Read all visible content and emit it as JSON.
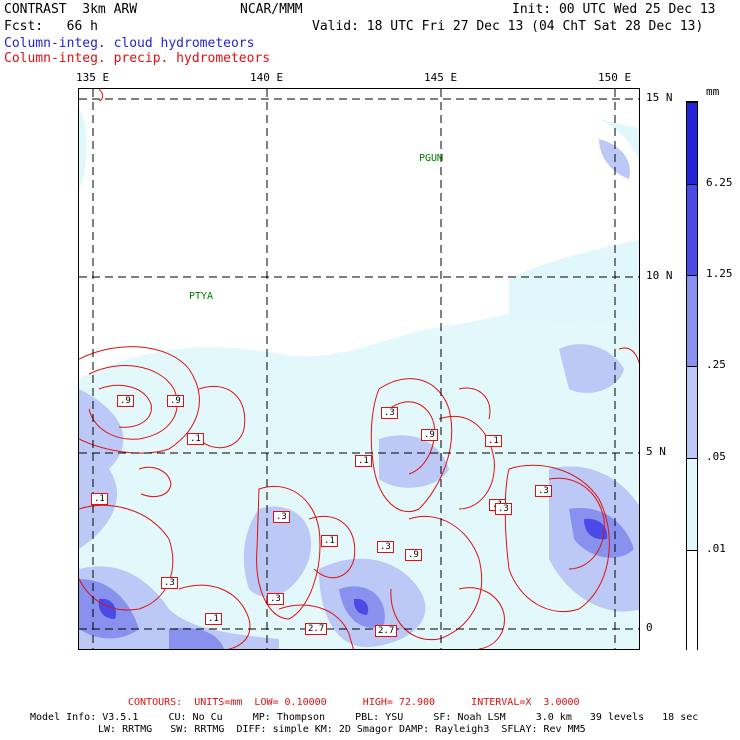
{
  "header": {
    "model": "CONTRAST  3km ARW",
    "org": "NCAR/MMM",
    "init": "Init: 00 UTC Wed 25 Dec 13",
    "fcst": "Fcst:   66 h",
    "valid": "Valid: 18 UTC Fri 27 Dec 13 (04 ChT Sat 28 Dec 13)",
    "field_blue": "Column-integ. cloud hydrometeors",
    "field_red": "Column-integ. precip. hydrometeors"
  },
  "map": {
    "lon_labels": [
      "135 E",
      "140 E",
      "145 E",
      "150 E"
    ],
    "lat_labels": [
      "15 N",
      "10 N",
      "5 N",
      "0"
    ],
    "stations": [
      "PGUM",
      "PTYA"
    ],
    "contour_labels": [
      ".9",
      ".9",
      ".1",
      ".1",
      ".3",
      ".9",
      ".1",
      ".1",
      ".3",
      ".3",
      ".1",
      ".9",
      ".3",
      "2.7",
      ".3",
      ".1",
      ".3",
      "2.7",
      ".1",
      ".3"
    ],
    "colors": {
      "cloud_level1": "#e0f7fb",
      "cloud_level2": "#bcc8f5",
      "cloud_level3": "#8892ee",
      "cloud_level4": "#4a4ae6",
      "cloud_level5": "#2323d8",
      "precip_contour": "#e01010",
      "station_text": "#007a00"
    }
  },
  "colorbar": {
    "unit": "mm",
    "labels": [
      "6.25",
      "1.25",
      ".25",
      ".05",
      ".01"
    ],
    "colors": [
      "#2323d8",
      "#4a4ae6",
      "#8892ee",
      "#bcc8f5",
      "#e0f7fb",
      "#ffffff"
    ]
  },
  "footer": {
    "contours": "CONTOURS:  UNITS=mm  LOW= 0.10000      HIGH= 72.900      INTERVAL=X  3.0000",
    "model_info_1": "Model Info: V3.5.1     CU: No Cu     MP: Thompson     PBL: YSU     SF: Noah LSM     3.0 km   39 levels   18 sec",
    "model_info_2": "LW: RRTMG   SW: RRTMG  DIFF: simple KM: 2D Smagor DAMP: Rayleigh3  SFLAY: Rev MM5"
  }
}
